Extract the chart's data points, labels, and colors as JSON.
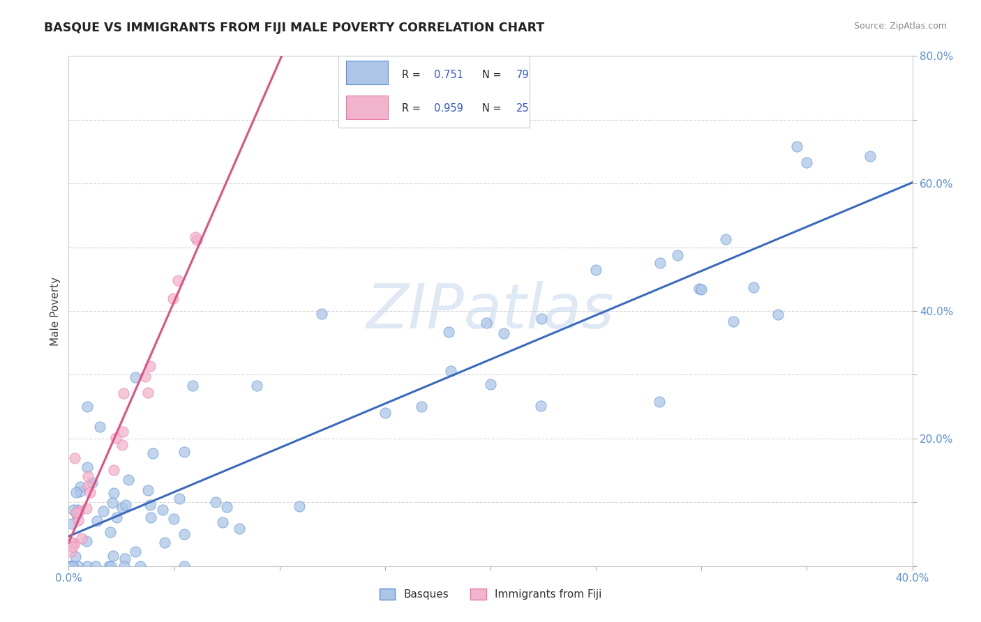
{
  "title": "BASQUE VS IMMIGRANTS FROM FIJI MALE POVERTY CORRELATION CHART",
  "source_text": "Source: ZipAtlas.com",
  "ylabel": "Male Poverty",
  "xlim": [
    0.0,
    0.4
  ],
  "ylim": [
    0.0,
    0.8
  ],
  "xtick_positions": [
    0.0,
    0.05,
    0.1,
    0.15,
    0.2,
    0.25,
    0.3,
    0.35,
    0.4
  ],
  "xtick_labels": [
    "0.0%",
    "",
    "",
    "",
    "",
    "",
    "",
    "",
    "40.0%"
  ],
  "ytick_positions": [
    0.0,
    0.1,
    0.2,
    0.3,
    0.4,
    0.5,
    0.6,
    0.7,
    0.8
  ],
  "ytick_labels": [
    "",
    "",
    "20.0%",
    "",
    "40.0%",
    "",
    "60.0%",
    "",
    "80.0%"
  ],
  "basque_color": "#adc6e8",
  "fiji_color": "#f2b3cc",
  "basque_edge_color": "#5a8fd4",
  "fiji_edge_color": "#e87aaa",
  "basque_line_color": "#3a6abf",
  "fiji_line_color": "#e05080",
  "tick_color": "#5a8fd4",
  "grid_color": "#cccccc",
  "background_color": "#ffffff",
  "watermark": "ZIPatlas",
  "watermark_zip_color": "#b8cce4",
  "watermark_atlas_color": "#b0c4de",
  "legend_R1_val": "0.751",
  "legend_N1_val": "79",
  "legend_R2_val": "0.959",
  "legend_N2_val": "25",
  "title_color": "#222222",
  "source_color": "#888888",
  "R_label_color": "#222222",
  "RN_value_color": "#3355cc"
}
